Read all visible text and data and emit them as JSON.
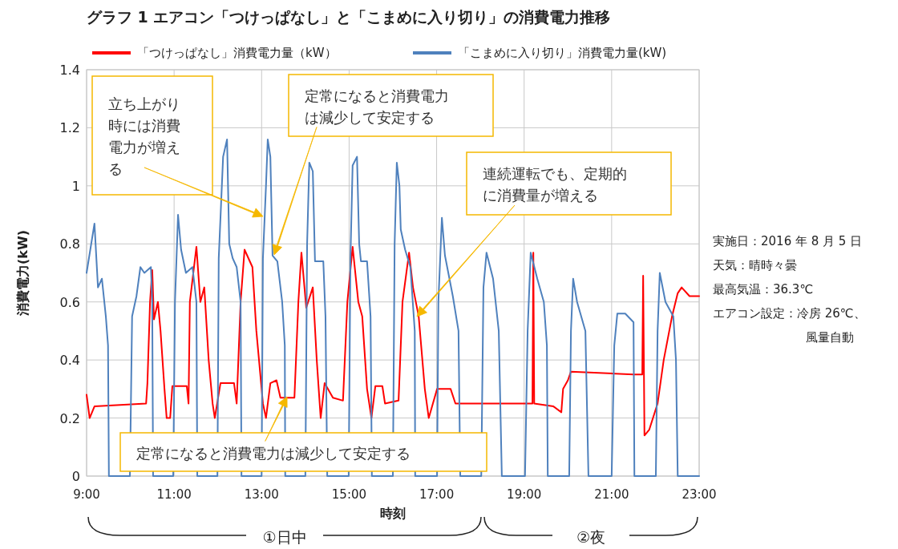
{
  "chart_data": {
    "type": "line",
    "title": "グラフ 1 エアコン「つけっぱなし」と「こまめに入り切り」の消費電力推移",
    "xlabel": "時刻",
    "ylabel": "消費電力(kW)",
    "xlim": [
      9,
      23
    ],
    "xticks": [
      {
        "value": 9,
        "label": "9:00"
      },
      {
        "value": 11,
        "label": "11:00"
      },
      {
        "value": 13,
        "label": "13:00"
      },
      {
        "value": 15,
        "label": "15:00"
      },
      {
        "value": 17,
        "label": "17:00"
      },
      {
        "value": 19,
        "label": "19:00"
      },
      {
        "value": 21,
        "label": "21:00"
      },
      {
        "value": 23,
        "label": "23:00"
      }
    ],
    "ylim": [
      0,
      1.4
    ],
    "yticks": [
      0,
      0.2,
      0.4,
      0.6,
      0.8,
      1,
      1.2,
      1.4
    ],
    "grid": true,
    "legend": "top",
    "line_style": "solid",
    "series": [
      {
        "name": "「つけっぱなし」消費電力量（kW）",
        "color": "#ff0000",
        "x": [
          9.0,
          9.07,
          9.18,
          10.36,
          10.39,
          10.45,
          10.5,
          10.54,
          10.63,
          10.69,
          10.78,
          10.83,
          10.91,
          10.96,
          11.29,
          11.33,
          11.36,
          11.51,
          11.6,
          11.69,
          11.79,
          11.88,
          11.93,
          12.06,
          12.37,
          12.43,
          12.52,
          12.61,
          12.79,
          12.88,
          13.03,
          13.1,
          13.2,
          13.34,
          13.43,
          13.75,
          13.84,
          13.91,
          14.02,
          14.17,
          14.26,
          14.35,
          14.44,
          14.63,
          14.86,
          14.96,
          15.08,
          15.21,
          15.3,
          15.41,
          15.51,
          15.6,
          15.76,
          15.82,
          16.13,
          16.22,
          16.37,
          16.46,
          16.59,
          16.73,
          16.82,
          17.01,
          17.32,
          17.43,
          19.19,
          19.21,
          19.23,
          19.67,
          19.85,
          19.89,
          20.0,
          20.07,
          21.5,
          21.7,
          21.72,
          21.75,
          21.86,
          22.05,
          22.19,
          22.38,
          22.51,
          22.6,
          22.78,
          23.0
        ],
        "values": [
          0.28,
          0.2,
          0.24,
          0.25,
          0.32,
          0.6,
          0.71,
          0.54,
          0.6,
          0.5,
          0.3,
          0.2,
          0.2,
          0.31,
          0.31,
          0.25,
          0.6,
          0.79,
          0.6,
          0.65,
          0.4,
          0.25,
          0.2,
          0.32,
          0.32,
          0.25,
          0.6,
          0.78,
          0.72,
          0.5,
          0.25,
          0.2,
          0.32,
          0.33,
          0.27,
          0.27,
          0.6,
          0.77,
          0.58,
          0.65,
          0.4,
          0.2,
          0.32,
          0.27,
          0.26,
          0.6,
          0.79,
          0.6,
          0.55,
          0.3,
          0.2,
          0.31,
          0.31,
          0.25,
          0.26,
          0.6,
          0.77,
          0.65,
          0.55,
          0.3,
          0.2,
          0.3,
          0.3,
          0.25,
          0.25,
          0.77,
          0.25,
          0.24,
          0.22,
          0.3,
          0.33,
          0.36,
          0.35,
          0.35,
          0.69,
          0.14,
          0.16,
          0.25,
          0.4,
          0.55,
          0.63,
          0.65,
          0.62,
          0.62
        ]
      },
      {
        "name": "「こまめに入り切り」消費電力量(kW)",
        "color": "#4f81bd",
        "x": [
          9.0,
          9.18,
          9.26,
          9.35,
          9.44,
          9.49,
          9.51,
          9.99,
          10.04,
          10.14,
          10.23,
          10.32,
          10.47,
          10.5,
          10.52,
          10.98,
          11.02,
          11.09,
          11.16,
          11.27,
          11.42,
          11.51,
          11.53,
          11.99,
          12.02,
          12.12,
          12.21,
          12.26,
          12.34,
          12.43,
          12.52,
          12.54,
          13.0,
          13.03,
          13.1,
          13.14,
          13.2,
          13.25,
          13.36,
          13.47,
          13.53,
          13.54,
          14.0,
          14.04,
          14.09,
          14.17,
          14.22,
          14.41,
          14.46,
          14.5,
          14.99,
          15.03,
          15.08,
          15.18,
          15.23,
          15.27,
          15.41,
          15.49,
          15.52,
          16.0,
          16.04,
          16.09,
          16.15,
          16.18,
          16.28,
          16.4,
          16.5,
          16.51,
          17.01,
          17.04,
          17.12,
          17.19,
          17.37,
          17.5,
          17.54,
          18.02,
          18.07,
          18.14,
          18.29,
          18.42,
          18.49,
          19.02,
          19.08,
          19.15,
          19.3,
          19.45,
          19.52,
          19.54,
          20.03,
          20.07,
          20.12,
          20.21,
          20.4,
          20.47,
          21.0,
          21.06,
          21.13,
          21.31,
          21.5,
          21.52,
          22.01,
          22.05,
          22.1,
          22.23,
          22.41,
          22.47,
          22.51,
          23.0
        ],
        "values": [
          0.7,
          0.87,
          0.65,
          0.68,
          0.55,
          0.45,
          0,
          0,
          0.55,
          0.62,
          0.72,
          0.7,
          0.72,
          0.6,
          0,
          0,
          0.6,
          0.9,
          0.78,
          0.7,
          0.72,
          0.6,
          0,
          0,
          0.75,
          1.1,
          1.16,
          0.8,
          0.75,
          0.72,
          0.6,
          0,
          0,
          0.75,
          1.0,
          1.16,
          1.1,
          0.76,
          0.74,
          0.6,
          0.45,
          0,
          0,
          0.8,
          1.08,
          1.05,
          0.74,
          0.74,
          0.55,
          0,
          0,
          0.75,
          1.07,
          1.1,
          0.8,
          0.74,
          0.74,
          0.55,
          0,
          0,
          0.8,
          1.08,
          1.0,
          0.85,
          0.78,
          0.72,
          0.5,
          0,
          0,
          0.6,
          0.89,
          0.76,
          0.62,
          0.5,
          0,
          0,
          0.65,
          0.77,
          0.68,
          0.5,
          0,
          0,
          0.5,
          0.77,
          0.68,
          0.6,
          0.45,
          0,
          0,
          0.5,
          0.68,
          0.6,
          0.5,
          0,
          0,
          0.45,
          0.56,
          0.56,
          0.53,
          0,
          0,
          0.5,
          0.7,
          0.6,
          0.55,
          0.4,
          0,
          0
        ]
      }
    ],
    "annotations": [
      "①日中",
      "②夜",
      "立ち上がり時には消費電力が増える",
      "定常になると消費電力は減少して安定する",
      "連続運転でも、定期的に消費量が増える",
      "定常になると消費電力は減少して安定する",
      "実施日：2016 年 8 月 5 日",
      "天気：晴時々曇",
      "最高気温：36.3℃",
      "エアコン設定：冷房 26℃、",
      "風量自動"
    ]
  }
}
